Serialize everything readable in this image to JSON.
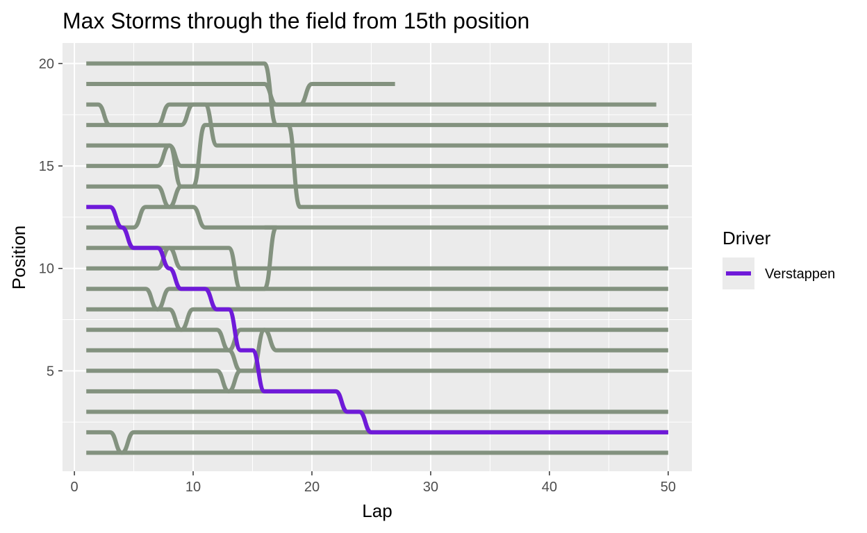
{
  "chart_data": {
    "type": "line",
    "title": "Max Storms through the field from 15th position",
    "xlabel": "Lap",
    "ylabel": "Position",
    "xlim": [
      -1,
      52
    ],
    "ylim": [
      0.1,
      21
    ],
    "x_ticks": [
      0,
      10,
      20,
      30,
      40,
      50
    ],
    "y_ticks": [
      5,
      10,
      15,
      20
    ],
    "grid": true,
    "legend": {
      "title": "Driver",
      "position": "right",
      "entries": [
        {
          "label": "Verstappen",
          "color": "#6f1ad9"
        }
      ]
    },
    "colors": {
      "highlight": "#6f1ad9",
      "others": "#83927f",
      "panel": "#ebebeb",
      "grid": "#ffffff"
    },
    "highlight_series": {
      "name": "Verstappen",
      "changes": [
        [
          1,
          13
        ],
        [
          3,
          12
        ],
        [
          4,
          11
        ],
        [
          7,
          10
        ],
        [
          8,
          9
        ],
        [
          11,
          8
        ],
        [
          13,
          6
        ],
        [
          15,
          4
        ],
        [
          22,
          3
        ],
        [
          24,
          2
        ]
      ],
      "end_lap": 50
    },
    "other_series": [
      {
        "changes": [
          [
            1,
            1
          ]
        ],
        "end_lap": 50
      },
      {
        "changes": [
          [
            1,
            2
          ],
          [
            3,
            1
          ],
          [
            4,
            2
          ]
        ],
        "end_lap": 50
      },
      {
        "changes": [
          [
            1,
            3
          ],
          [
            24,
            2
          ]
        ],
        "end_lap": 50
      },
      {
        "changes": [
          [
            1,
            4
          ],
          [
            22,
            3
          ]
        ],
        "end_lap": 50
      },
      {
        "changes": [
          [
            1,
            5
          ],
          [
            12,
            4
          ],
          [
            13,
            5
          ]
        ],
        "end_lap": 50
      },
      {
        "changes": [
          [
            1,
            6
          ],
          [
            13,
            5
          ],
          [
            15,
            7
          ],
          [
            16,
            6
          ]
        ],
        "end_lap": 50
      },
      {
        "changes": [
          [
            1,
            7
          ],
          [
            12,
            6
          ],
          [
            13,
            7
          ]
        ],
        "end_lap": 50
      },
      {
        "changes": [
          [
            1,
            8
          ],
          [
            8,
            7
          ],
          [
            9,
            8
          ]
        ],
        "end_lap": 50
      },
      {
        "changes": [
          [
            1,
            9
          ],
          [
            6,
            8
          ],
          [
            7,
            9
          ]
        ],
        "end_lap": 50
      },
      {
        "changes": [
          [
            1,
            10
          ],
          [
            7,
            11
          ],
          [
            8,
            10
          ]
        ],
        "end_lap": 50
      },
      {
        "changes": [
          [
            1,
            11
          ],
          [
            13,
            9
          ],
          [
            16,
            12
          ]
        ],
        "end_lap": 16
      },
      {
        "changes": [
          [
            1,
            12
          ],
          [
            5,
            13
          ],
          [
            10,
            12
          ]
        ],
        "end_lap": 50
      },
      {
        "changes": [
          [
            1,
            14
          ],
          [
            7,
            13
          ],
          [
            8,
            14
          ]
        ],
        "end_lap": 50
      },
      {
        "changes": [
          [
            1,
            15
          ],
          [
            7,
            16
          ],
          [
            8,
            15
          ]
        ],
        "end_lap": 50
      },
      {
        "changes": [
          [
            1,
            16
          ],
          [
            8,
            14
          ],
          [
            10,
            17
          ]
        ],
        "end_lap": 50
      },
      {
        "changes": [
          [
            1,
            17
          ],
          [
            9,
            18
          ],
          [
            11,
            16
          ]
        ],
        "end_lap": 50
      },
      {
        "changes": [
          [
            1,
            18
          ],
          [
            2,
            17
          ],
          [
            7,
            18
          ]
        ],
        "end_lap": 49
      },
      {
        "changes": [
          [
            1,
            19
          ],
          [
            16,
            18
          ],
          [
            19,
            19
          ]
        ],
        "end_lap": 27
      },
      {
        "changes": [
          [
            1,
            20
          ],
          [
            16,
            17
          ],
          [
            18,
            13
          ]
        ],
        "end_lap": 50
      }
    ]
  }
}
